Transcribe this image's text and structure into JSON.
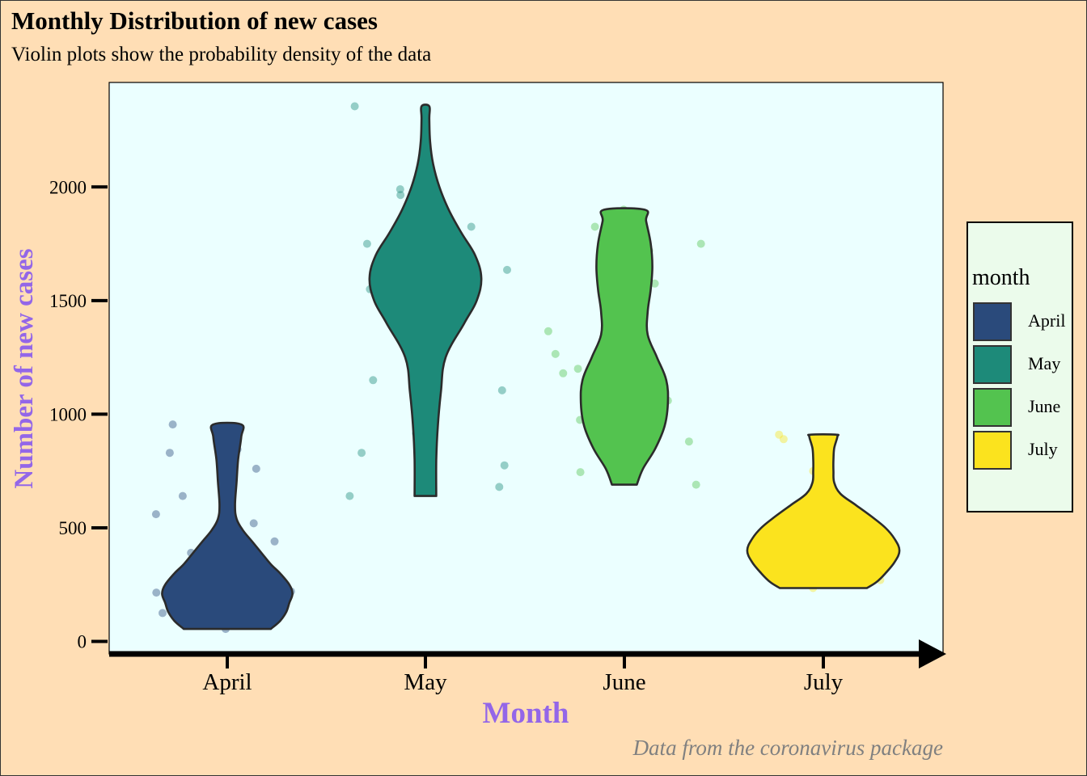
{
  "title": "Monthly Distribution of new cases",
  "subtitle": "Violin plots show the probability density of the data",
  "caption": "Data from the coronavirus package",
  "chart_data": {
    "type": "violin",
    "xlabel": "Month",
    "ylabel": "Number of new cases",
    "categories": [
      "April",
      "May",
      "June",
      "July"
    ],
    "yticks": [
      0,
      500,
      1000,
      1500,
      2000
    ],
    "ylim": [
      -55,
      2460
    ],
    "colors": {
      "April": "#2A4A7B",
      "May": "#1D8A79",
      "June": "#53C34F",
      "July": "#FBE31E",
      "axis_label": "#9366E8",
      "panel": "#EBFFFF",
      "background": "#FFDEB5"
    },
    "series": [
      {
        "name": "April",
        "min": 55,
        "max": 955,
        "density": [
          [
            55,
            0.28
          ],
          [
            90,
            0.34
          ],
          [
            130,
            0.38
          ],
          [
            170,
            0.4
          ],
          [
            210,
            0.42
          ],
          [
            250,
            0.4
          ],
          [
            300,
            0.34
          ],
          [
            340,
            0.28
          ],
          [
            390,
            0.22
          ],
          [
            440,
            0.16
          ],
          [
            490,
            0.1
          ],
          [
            540,
            0.06
          ],
          [
            600,
            0.05
          ],
          [
            700,
            0.06
          ],
          [
            800,
            0.07
          ],
          [
            900,
            0.09
          ],
          [
            955,
            0.09
          ]
        ],
        "points": [
          55,
          110,
          125,
          145,
          150,
          165,
          215,
          220,
          230,
          280,
          390,
          440,
          520,
          560,
          605,
          640,
          760,
          830,
          845,
          930,
          955
        ]
      },
      {
        "name": "May",
        "min": 640,
        "max": 2355,
        "density": [
          [
            640,
            0.07
          ],
          [
            800,
            0.07
          ],
          [
            950,
            0.08
          ],
          [
            1100,
            0.1
          ],
          [
            1250,
            0.13
          ],
          [
            1400,
            0.25
          ],
          [
            1500,
            0.33
          ],
          [
            1600,
            0.36
          ],
          [
            1700,
            0.32
          ],
          [
            1800,
            0.23
          ],
          [
            1900,
            0.15
          ],
          [
            2000,
            0.09
          ],
          [
            2100,
            0.05
          ],
          [
            2200,
            0.03
          ],
          [
            2300,
            0.025
          ],
          [
            2355,
            0.025
          ]
        ],
        "points": [
          640,
          680,
          775,
          830,
          915,
          1105,
          1150,
          1185,
          1490,
          1500,
          1525,
          1550,
          1635,
          1635,
          1650,
          1730,
          1740,
          1750,
          1825,
          1965,
          1990,
          2355
        ]
      },
      {
        "name": "June",
        "min": 690,
        "max": 1900,
        "density": [
          [
            690,
            0.08
          ],
          [
            760,
            0.12
          ],
          [
            850,
            0.2
          ],
          [
            950,
            0.26
          ],
          [
            1050,
            0.28
          ],
          [
            1150,
            0.27
          ],
          [
            1250,
            0.21
          ],
          [
            1350,
            0.15
          ],
          [
            1450,
            0.15
          ],
          [
            1550,
            0.17
          ],
          [
            1650,
            0.18
          ],
          [
            1750,
            0.17
          ],
          [
            1850,
            0.14
          ],
          [
            1900,
            0.13
          ]
        ],
        "points": [
          690,
          745,
          880,
          945,
          975,
          1020,
          1030,
          1060,
          1175,
          1180,
          1200,
          1200,
          1265,
          1365,
          1515,
          1575,
          1720,
          1750,
          1825,
          1825,
          1900
        ]
      },
      {
        "name": "July",
        "min": 235,
        "max": 910,
        "density": [
          [
            235,
            0.28
          ],
          [
            260,
            0.34
          ],
          [
            300,
            0.4
          ],
          [
            350,
            0.46
          ],
          [
            400,
            0.49
          ],
          [
            450,
            0.46
          ],
          [
            500,
            0.4
          ],
          [
            550,
            0.31
          ],
          [
            600,
            0.21
          ],
          [
            650,
            0.11
          ],
          [
            700,
            0.07
          ],
          [
            750,
            0.065
          ],
          [
            800,
            0.065
          ],
          [
            850,
            0.07
          ],
          [
            900,
            0.09
          ],
          [
            910,
            0.08
          ]
        ],
        "points": [
          235,
          270,
          340,
          750,
          890,
          910
        ]
      }
    ],
    "legend": {
      "title": "month",
      "position": "right"
    }
  }
}
